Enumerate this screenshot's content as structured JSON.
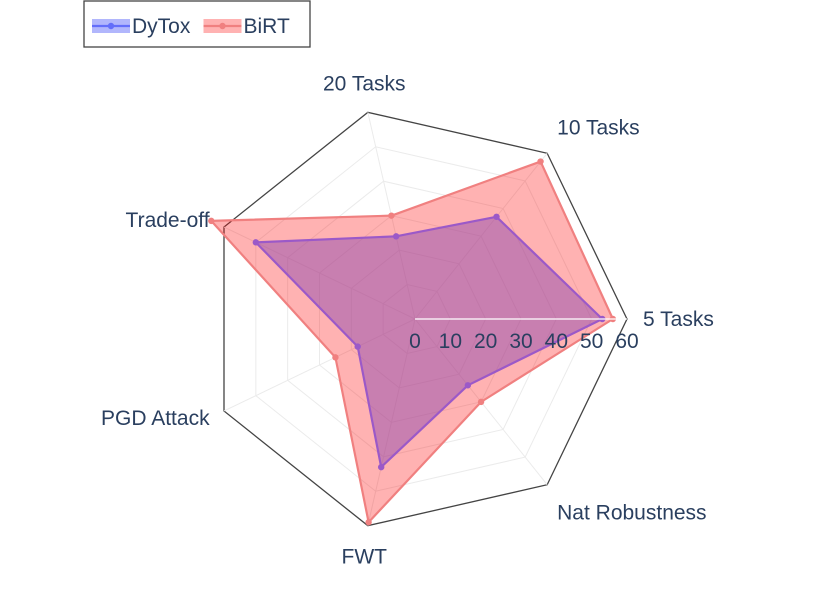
{
  "chart_data": {
    "type": "radar",
    "title": "",
    "axes": [
      "5 Tasks",
      "10 Tasks",
      "20 Tasks",
      "Trade-off",
      "PGD Attack",
      "FWT",
      "Nat Robustness"
    ],
    "radial_range": [
      0,
      60
    ],
    "radial_ticks": [
      "0",
      "10",
      "20",
      "30",
      "40",
      "50",
      "60"
    ],
    "grid": true,
    "legend_position": "top-left",
    "series": [
      {
        "name": "DyTox",
        "values": [
          53,
          37,
          24,
          50,
          18,
          43,
          24
        ],
        "color": "#636efa",
        "fill": "rgba(99,110,250,0.5)"
      },
      {
        "name": "BiRT",
        "values": [
          56,
          57,
          30,
          64,
          25,
          59,
          30
        ],
        "color": "#ef553b",
        "fill": "rgba(255,0,0,0.3)",
        "line": "#f08080"
      }
    ]
  }
}
